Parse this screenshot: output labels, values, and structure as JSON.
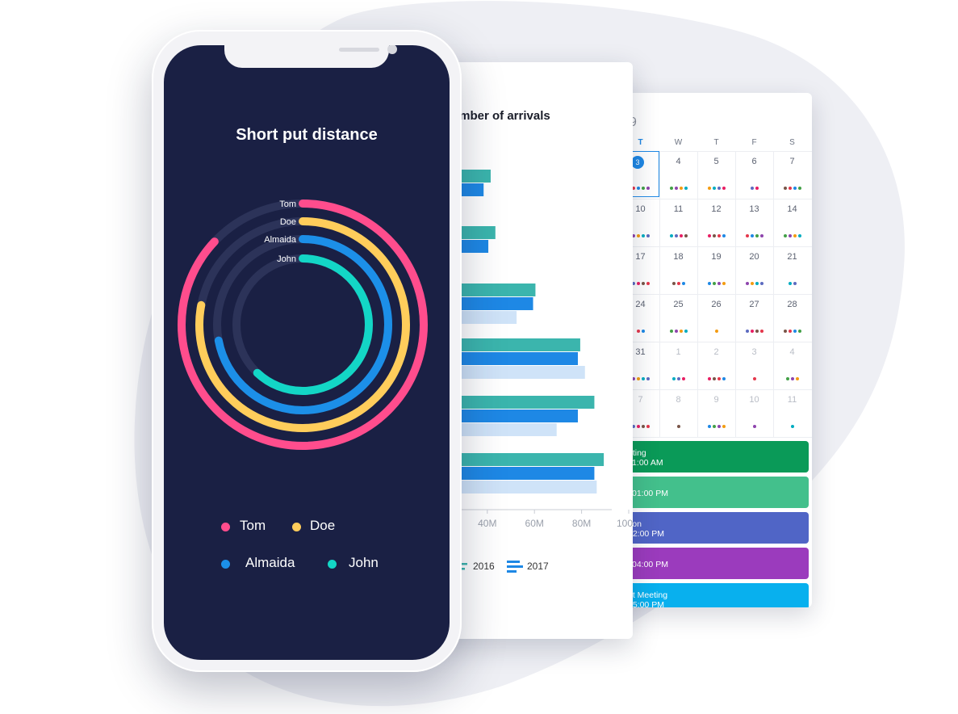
{
  "radial_chart": {
    "title": "Short put distance",
    "series": [
      {
        "name": "Tom",
        "value": 87,
        "color": "#ff4d8d"
      },
      {
        "name": "Doe",
        "value": 78,
        "color": "#ffcd5b"
      },
      {
        "name": "Almaida",
        "value": 72,
        "color": "#1c8fe8"
      },
      {
        "name": "John",
        "value": 62,
        "color": "#13d6c6"
      }
    ],
    "track_color": "#2c3359"
  },
  "bar_chart": {
    "title": "Number of arrivals",
    "visible_title": "umber of arrivals",
    "x_ticks": [
      "40M",
      "60M",
      "80M",
      "100M"
    ],
    "series_colors": [
      "#3bb5ad",
      "#1e88e5",
      "#cfe3f8"
    ],
    "legend": [
      "2016",
      "2017"
    ],
    "visible_bar_ends": [
      [
        38,
        35,
        null
      ],
      [
        40,
        37,
        null
      ],
      [
        57,
        56,
        49
      ],
      [
        76,
        75,
        78
      ],
      [
        82,
        75,
        66
      ],
      [
        86,
        82,
        83
      ]
    ]
  },
  "calendar": {
    "year_fragment": "9",
    "weekday_headers": [
      "T",
      "W",
      "T",
      "F",
      "S"
    ],
    "today": "3",
    "weeks": [
      [
        "3",
        "4",
        "5",
        "6",
        "7"
      ],
      [
        "10",
        "11",
        "12",
        "13",
        "14"
      ],
      [
        "17",
        "18",
        "19",
        "20",
        "21"
      ],
      [
        "24",
        "25",
        "26",
        "27",
        "28"
      ],
      [
        "31",
        "1",
        "2",
        "3",
        "4"
      ],
      [
        "7",
        "8",
        "9",
        "10",
        "11"
      ]
    ],
    "events": [
      {
        "title": "eting",
        "time": "11:00 AM",
        "color": "#0a9a58"
      },
      {
        "title": "",
        "time": "01:00 PM",
        "color": "#43c08c"
      },
      {
        "title": "tion",
        "time": "02:00 PM",
        "color": "#5065c6"
      },
      {
        "title": "",
        "time": "04:00 PM",
        "color": "#9b3bbd"
      },
      {
        "title": "nt Meeting",
        "time": "05:00 PM",
        "color": "#08b0ee"
      }
    ]
  }
}
